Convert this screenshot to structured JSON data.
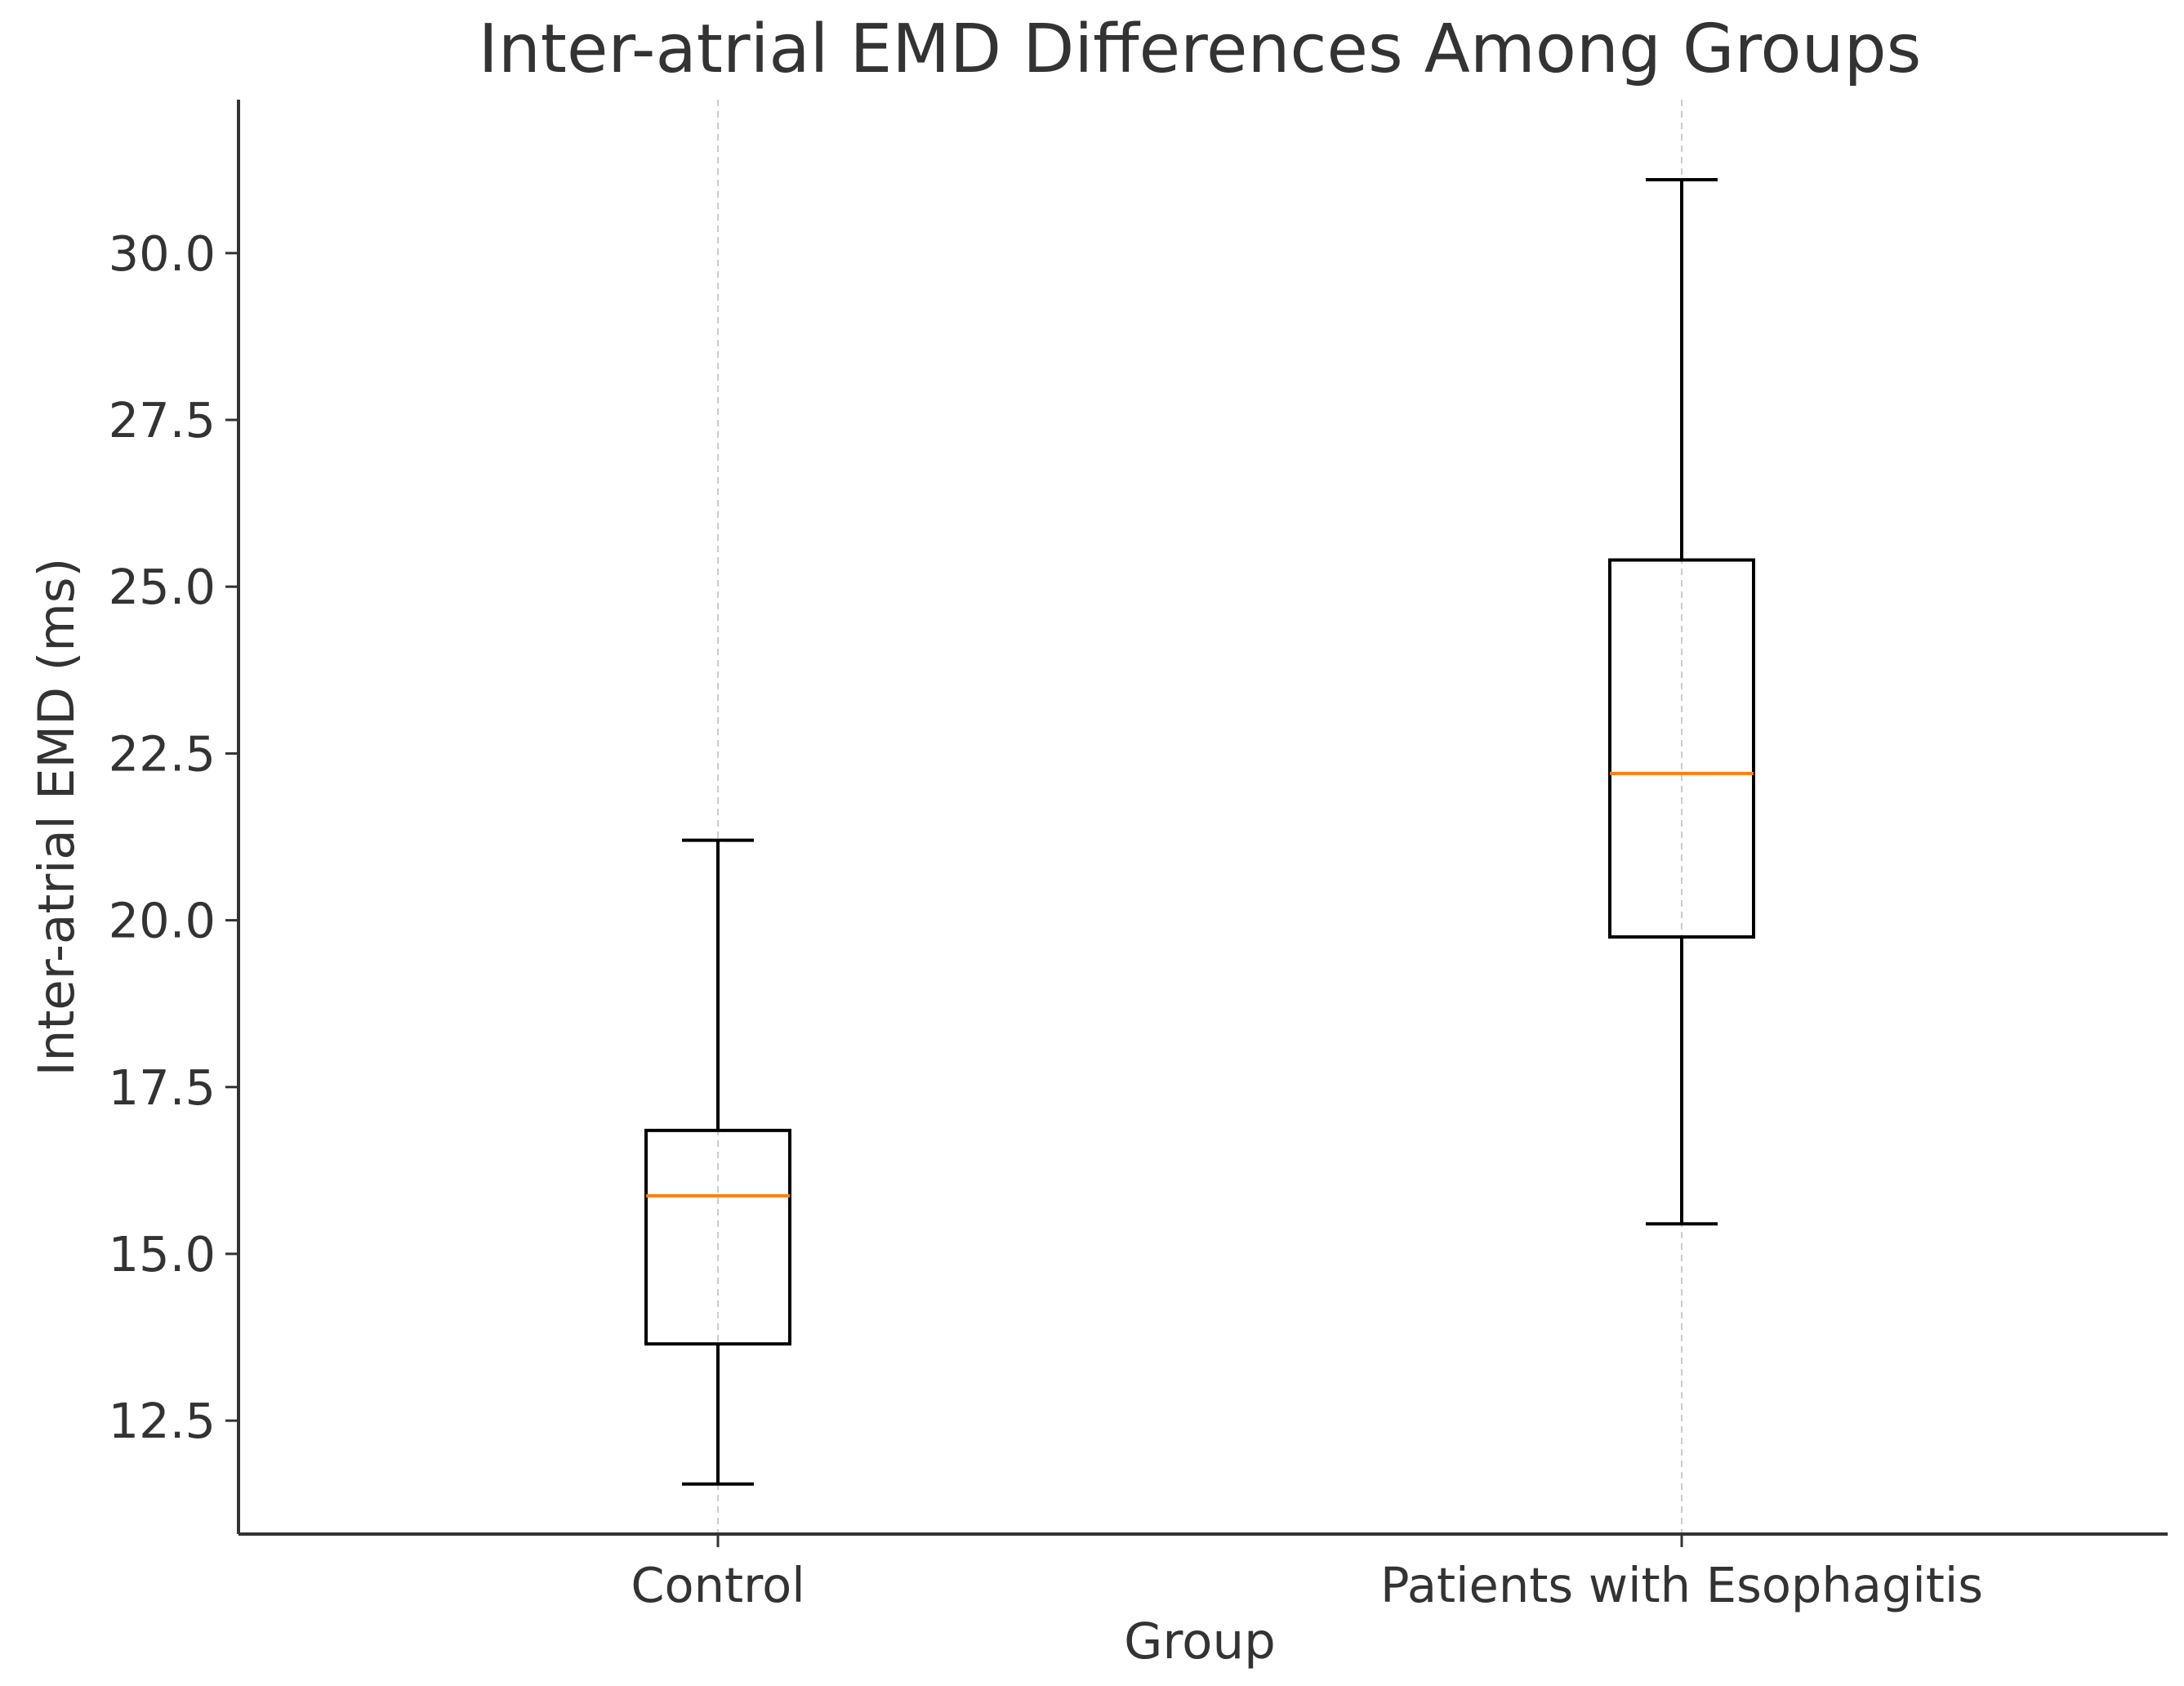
{
  "chart_data": {
    "type": "box",
    "title": "Inter-atrial EMD Differences Among Groups",
    "xlabel": "Group",
    "ylabel": "Inter-atrial EMD (ms)",
    "ylim": [
      10.8,
      32.3
    ],
    "yticks": [
      "12.5",
      "15.0",
      "17.5",
      "20.0",
      "22.5",
      "25.0",
      "27.5",
      "30.0"
    ],
    "grid": "vertical dashed at category positions",
    "categories": [
      "Control",
      "Patients with Esophagitis"
    ],
    "boxes": [
      {
        "name": "Control",
        "whisker_low": 11.55,
        "q1": 13.65,
        "median": 15.87,
        "q3": 16.85,
        "whisker_high": 21.2
      },
      {
        "name": "Patients with Esophagitis",
        "whisker_low": 15.45,
        "q1": 19.75,
        "median": 22.2,
        "q3": 25.4,
        "whisker_high": 31.1
      }
    ],
    "colors": {
      "box": "#000000",
      "median": "#ff7f0e",
      "grid": "#cccccc",
      "axis": "#333333"
    }
  }
}
